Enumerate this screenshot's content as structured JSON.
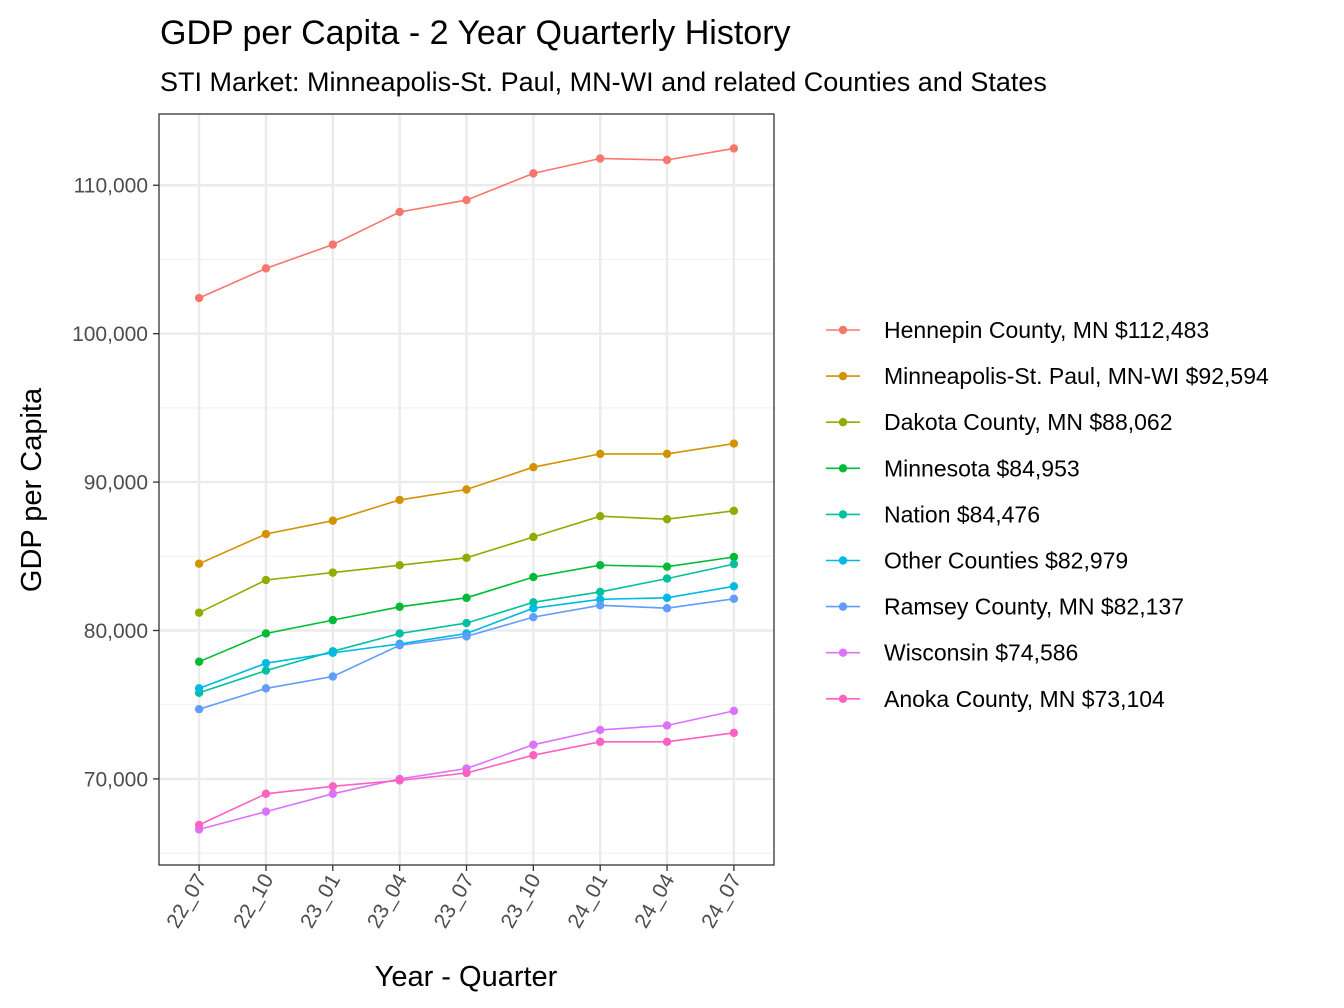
{
  "chart_data": {
    "type": "line",
    "title": "GDP per Capita - 2 Year Quarterly History",
    "subtitle": "STI Market: Minneapolis-St. Paul, MN-WI and related Counties and States",
    "xlabel": "Year - Quarter",
    "ylabel": "GDP per Capita",
    "categories": [
      "22_07",
      "22_10",
      "23_01",
      "23_04",
      "23_07",
      "23_10",
      "24_01",
      "24_04",
      "24_07"
    ],
    "ylim": [
      64200,
      114800
    ],
    "yticks": [
      70000,
      80000,
      90000,
      100000,
      110000
    ],
    "ytick_labels": [
      "70,000",
      "80,000",
      "90,000",
      "100,000",
      "110,000"
    ],
    "grid": true,
    "legend_position": "right",
    "series": [
      {
        "name": "Hennepin County, MN $112,483",
        "color": "#F8766D",
        "values": [
          102400,
          104400,
          106000,
          108200,
          109000,
          110800,
          111800,
          111700,
          112483
        ]
      },
      {
        "name": "Minneapolis-St. Paul, MN-WI $92,594",
        "color": "#D39200",
        "values": [
          84500,
          86500,
          87400,
          88800,
          89500,
          91000,
          91900,
          91900,
          92594
        ]
      },
      {
        "name": "Dakota County, MN $88,062",
        "color": "#93AA00",
        "values": [
          81200,
          83400,
          83900,
          84400,
          84900,
          86300,
          87700,
          87500,
          88062
        ]
      },
      {
        "name": "Minnesota $84,953",
        "color": "#00BA38",
        "values": [
          77900,
          79800,
          80700,
          81600,
          82200,
          83600,
          84400,
          84300,
          84953
        ]
      },
      {
        "name": "Nation $84,476",
        "color": "#00C19F",
        "values": [
          75800,
          77300,
          78600,
          79800,
          80500,
          81900,
          82600,
          83500,
          84476
        ]
      },
      {
        "name": "Other Counties $82,979",
        "color": "#00B9E3",
        "values": [
          76100,
          77800,
          78500,
          79100,
          79800,
          81500,
          82100,
          82200,
          82979
        ]
      },
      {
        "name": "Ramsey County, MN $82,137",
        "color": "#619CFF",
        "values": [
          74700,
          76100,
          76900,
          79000,
          79600,
          80900,
          81700,
          81500,
          82137
        ]
      },
      {
        "name": "Wisconsin $74,586",
        "color": "#DB72FB",
        "values": [
          66600,
          67800,
          69000,
          70000,
          70700,
          72300,
          73300,
          73600,
          74586
        ]
      },
      {
        "name": "Anoka County, MN $73,104",
        "color": "#FF61C3",
        "values": [
          66900,
          69000,
          69500,
          69900,
          70400,
          71600,
          72500,
          72500,
          73104
        ]
      }
    ]
  }
}
